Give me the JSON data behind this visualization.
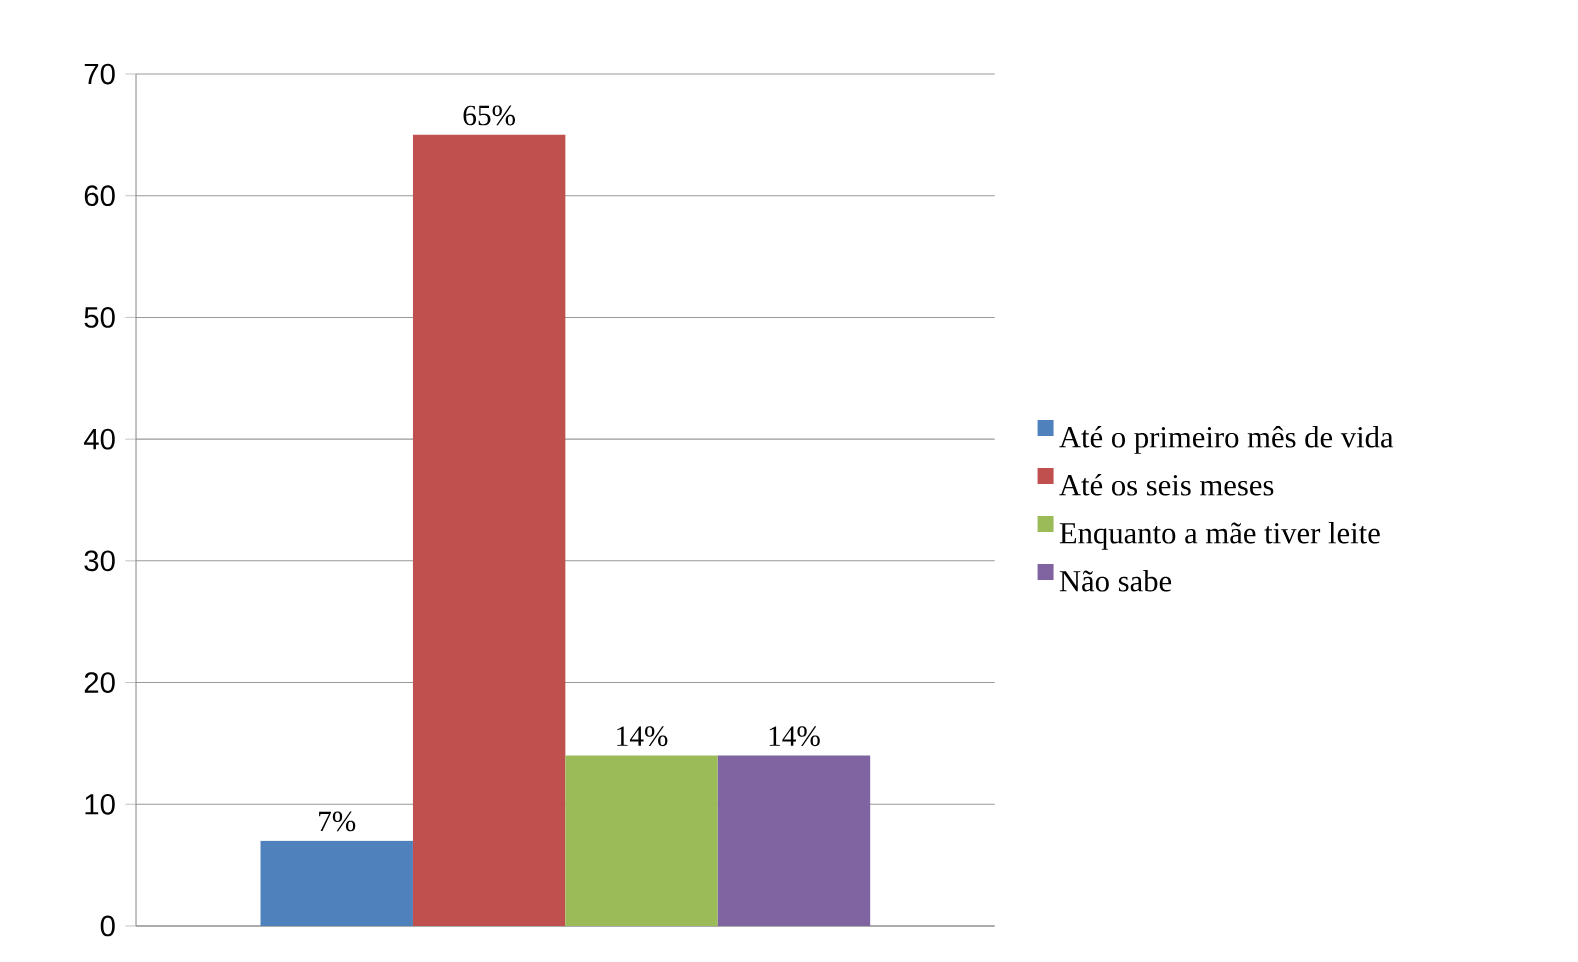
{
  "chart_data": {
    "type": "bar",
    "categories": [
      null
    ],
    "series": [
      {
        "name": "Até o primeiro mês de vida",
        "color": "#4f81bd",
        "values": [
          7
        ],
        "value_labels": [
          "7%"
        ]
      },
      {
        "name": "Até os seis meses",
        "color": "#c0504d",
        "values": [
          65
        ],
        "value_labels": [
          "65%"
        ]
      },
      {
        "name": "Enquanto a mãe tiver leite",
        "color": "#9bbb59",
        "values": [
          14
        ],
        "value_labels": [
          "14%"
        ]
      },
      {
        "name": "Não sabe",
        "color": "#8064a2",
        "values": [
          14
        ],
        "value_labels": [
          "14%"
        ]
      }
    ],
    "ylim": [
      0,
      70
    ],
    "yticks": [
      0,
      10,
      20,
      30,
      40,
      50,
      60,
      70
    ],
    "grid": "y",
    "legend": "right"
  }
}
